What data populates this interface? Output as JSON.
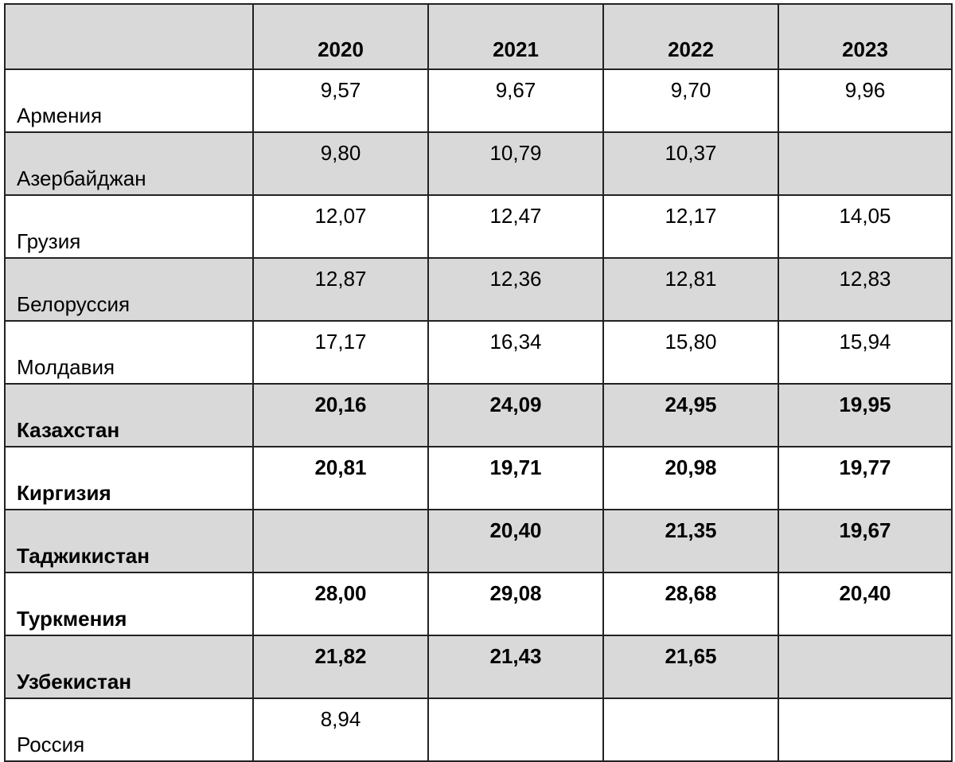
{
  "table": {
    "columns": [
      "",
      "2020",
      "2021",
      "2022",
      "2023"
    ],
    "rows": [
      {
        "country": "Армения",
        "values": [
          "9,57",
          "9,67",
          "9,70",
          "9,96"
        ],
        "bold": false
      },
      {
        "country": "Азербайджан",
        "values": [
          "9,80",
          "10,79",
          "10,37",
          ""
        ],
        "bold": false
      },
      {
        "country": "Грузия",
        "values": [
          "12,07",
          "12,47",
          "12,17",
          "14,05"
        ],
        "bold": false
      },
      {
        "country": "Белоруссия",
        "values": [
          "12,87",
          "12,36",
          "12,81",
          "12,83"
        ],
        "bold": false
      },
      {
        "country": "Молдавия",
        "values": [
          "17,17",
          "16,34",
          "15,80",
          "15,94"
        ],
        "bold": false
      },
      {
        "country": "Казахстан",
        "values": [
          "20,16",
          "24,09",
          "24,95",
          "19,95"
        ],
        "bold": true
      },
      {
        "country": "Киргизия",
        "values": [
          "20,81",
          "19,71",
          "20,98",
          "19,77"
        ],
        "bold": true
      },
      {
        "country": "Таджикистан",
        "values": [
          "",
          "20,40",
          "21,35",
          "19,67"
        ],
        "bold": true
      },
      {
        "country": "Туркмения",
        "values": [
          "28,00",
          "29,08",
          "28,68",
          "20,40"
        ],
        "bold": true
      },
      {
        "country": "Узбекистан",
        "values": [
          "21,82",
          "21,43",
          "21,65",
          ""
        ],
        "bold": true
      },
      {
        "country": "Россия",
        "values": [
          "8,94",
          "",
          "",
          ""
        ],
        "bold": false
      }
    ],
    "colors": {
      "shaded_row": "#d9d9d9",
      "border": "#222222"
    }
  }
}
